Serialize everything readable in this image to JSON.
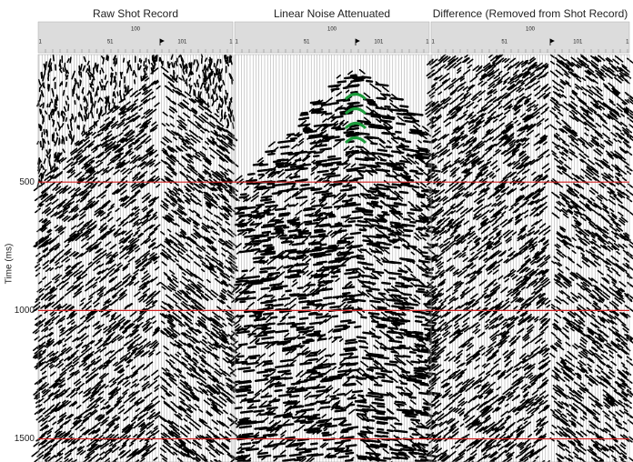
{
  "panels": [
    {
      "title": "Raw Shot Record",
      "header": {
        "top": "100",
        "labels": [
          "1",
          "51",
          "101",
          "1"
        ]
      }
    },
    {
      "title": "Linear Noise Attenuated",
      "header": {
        "top": "100",
        "labels": [
          "1",
          "51",
          "101",
          "1"
        ]
      }
    },
    {
      "title": "Difference (Removed from Shot Record)",
      "header": {
        "top": "100",
        "labels": [
          "1",
          "51",
          "101",
          "1"
        ]
      }
    }
  ],
  "y_axis": {
    "label": "Time (ms)",
    "ylim": [
      0,
      1590
    ],
    "ticks": [
      500,
      1000,
      1500
    ]
  }
}
